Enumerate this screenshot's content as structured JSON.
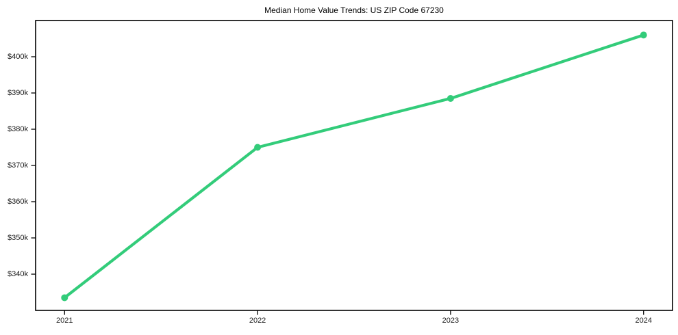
{
  "figure": {
    "title": "Median Home Value Trends: US ZIP Code 67230"
  },
  "chart_data": {
    "type": "line",
    "title": "Median Home Value Trends: US ZIP Code 67230",
    "series_name": "Median Home Value",
    "x": [
      2021,
      2022,
      2023,
      2024
    ],
    "x_tick_labels": [
      "2021",
      "2022",
      "2023",
      "2024"
    ],
    "values": [
      333500,
      375000,
      388500,
      406000
    ],
    "y_ticks": [
      340000,
      350000,
      360000,
      370000,
      380000,
      390000,
      400000
    ],
    "y_tick_labels": [
      "$340k",
      "$350k",
      "$360k",
      "$370k",
      "$380k",
      "$390k",
      "$400k"
    ],
    "xlim": [
      2020.85,
      2024.15
    ],
    "ylim": [
      330000,
      410000
    ],
    "xlabel": "",
    "ylabel": "",
    "grid": false,
    "legend_visible": false,
    "line_color": "#33cc7a",
    "marker": "circle",
    "axis_color": "#000000",
    "tick_text_color": "#1a1a1a"
  }
}
